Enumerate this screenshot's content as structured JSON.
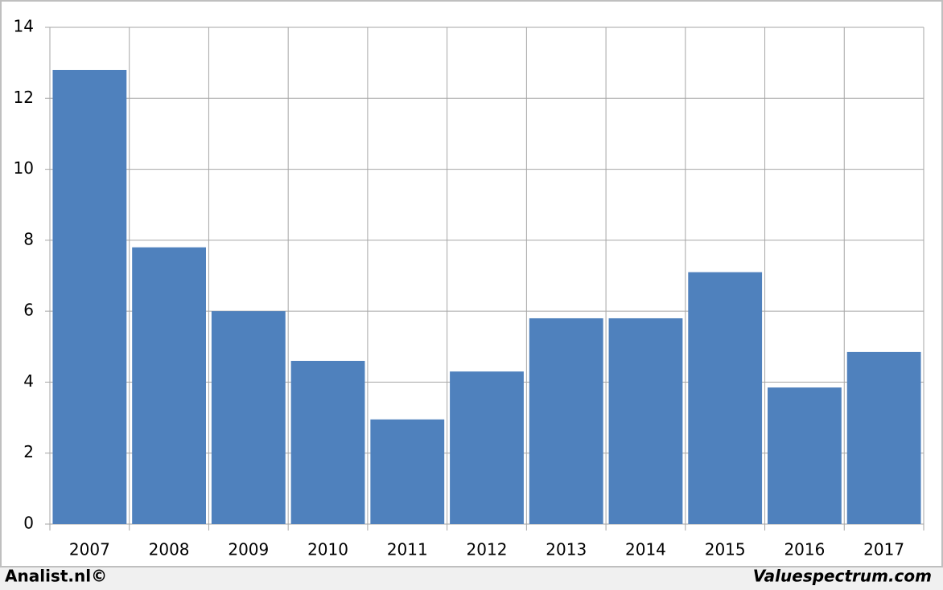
{
  "chart_data": {
    "type": "bar",
    "categories": [
      "2007",
      "2008",
      "2009",
      "2010",
      "2011",
      "2012",
      "2013",
      "2014",
      "2015",
      "2016",
      "2017"
    ],
    "values": [
      12.8,
      7.8,
      6.0,
      4.6,
      2.95,
      4.3,
      5.8,
      5.8,
      7.1,
      3.85,
      4.85
    ],
    "color": "#4f81bd",
    "ylim": [
      0,
      14
    ],
    "yticks": [
      0,
      2,
      4,
      6,
      8,
      10,
      12,
      14
    ],
    "grid": true,
    "footer_left": "Analist.nl©",
    "footer_right": "Valuespectrum.com"
  }
}
